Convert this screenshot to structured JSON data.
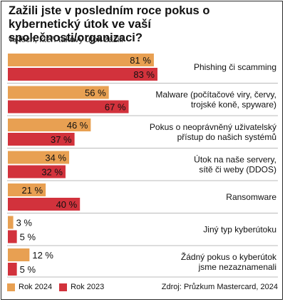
{
  "colors": {
    "series_2024": "#E8A052",
    "series_2023": "#D2323C",
    "separator": "#bbbbbb"
  },
  "legend": [
    {
      "label": "Rok 2024"
    },
    {
      "label": "Rok 2023"
    }
  ],
  "source": "Zdroj: Průzkum Mastercard, 2024",
  "chart_data": {
    "type": "bar",
    "orientation": "horizontal",
    "title": "Zažili jste v posledním roce pokus o kybernetický útok ve vaší společnosti/organizaci?",
    "subtitle": "% těch, kteří takový útok zažili",
    "categories": [
      [
        "Phishing či scamming"
      ],
      [
        "Malware (počítačové viry, červy,",
        "trojské koně, spyware)"
      ],
      [
        "Pokus o neoprávněný uživatelský",
        "přístup do našich systémů"
      ],
      [
        "Útok na naše servery,",
        "sítě či weby (DDOS)"
      ],
      [
        "Ransomware"
      ],
      [
        "Jiný typ kyberútoku"
      ],
      [
        "Žádný pokus o kyberútok",
        "jsme nezaznamenali"
      ]
    ],
    "series": [
      {
        "name": "Rok 2024",
        "values": [
          81,
          56,
          46,
          34,
          21,
          3,
          12
        ],
        "labels": [
          "81 %",
          "56 %",
          "46 %",
          "34 %",
          "21 %",
          "3 %",
          "12 %"
        ]
      },
      {
        "name": "Rok 2023",
        "values": [
          83,
          67,
          37,
          32,
          40,
          5,
          5
        ],
        "labels": [
          "83 %",
          "67 %",
          "37 %",
          "32 %",
          "40 %",
          "5 %",
          "5 %"
        ]
      }
    ],
    "xlim": [
      0,
      83
    ],
    "grid": false,
    "legend_position": "bottom-left"
  }
}
